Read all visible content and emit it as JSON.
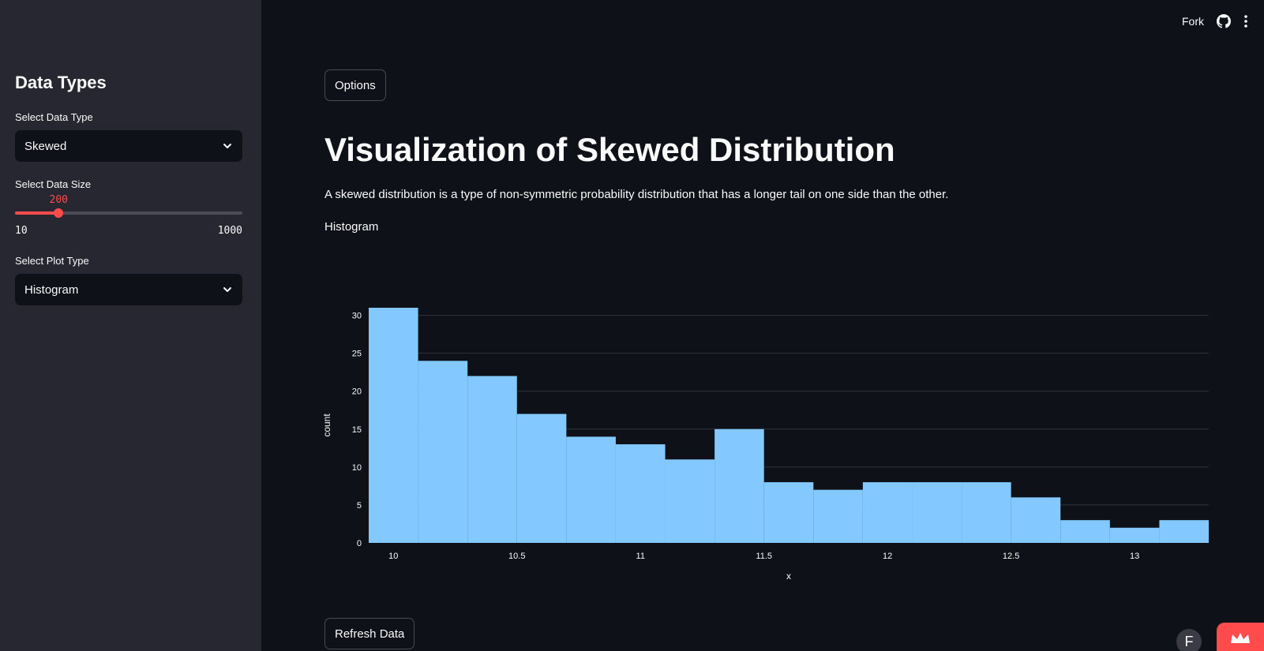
{
  "sidebar": {
    "title": "Data Types",
    "data_type": {
      "label": "Select Data Type",
      "value": "Skewed"
    },
    "data_size": {
      "label": "Select Data Size",
      "value": 200,
      "min": 10,
      "max": 1000
    },
    "plot_type": {
      "label": "Select Plot Type",
      "value": "Histogram"
    }
  },
  "header": {
    "fork_label": "Fork"
  },
  "main": {
    "options_button": "Options",
    "title": "Visualization of Skewed Distribution",
    "description": "A skewed distribution is a type of non-symmetric probability distribution that has a longer tail on one side than the other.",
    "plot_label": "Histogram",
    "refresh_button": "Refresh Data"
  },
  "colors": {
    "accent": "#ff4b4b",
    "bar": "#83c9ff",
    "bg": "#0e1117",
    "sidebar": "#262730"
  },
  "chart_data": {
    "type": "bar",
    "title": "",
    "xlabel": "x",
    "ylabel": "count",
    "bin_edges": [
      9.9,
      10.1,
      10.3,
      10.5,
      10.7,
      10.9,
      11.1,
      11.3,
      11.5,
      11.7,
      11.9,
      12.1,
      12.3,
      12.5,
      12.7,
      12.9,
      13.1,
      13.3
    ],
    "values": [
      31,
      24,
      22,
      17,
      14,
      13,
      11,
      15,
      8,
      7,
      8,
      8,
      8,
      6,
      3,
      2,
      3
    ],
    "xlim": [
      9.9,
      13.3
    ],
    "ylim": [
      0,
      31
    ],
    "xticks": [
      10,
      10.5,
      11,
      11.5,
      12,
      12.5,
      13
    ],
    "xtick_labels": [
      "10",
      "10.5",
      "11",
      "11.5",
      "12",
      "12.5",
      "13"
    ],
    "yticks": [
      0,
      5,
      10,
      15,
      20,
      25,
      30
    ],
    "grid": true
  }
}
